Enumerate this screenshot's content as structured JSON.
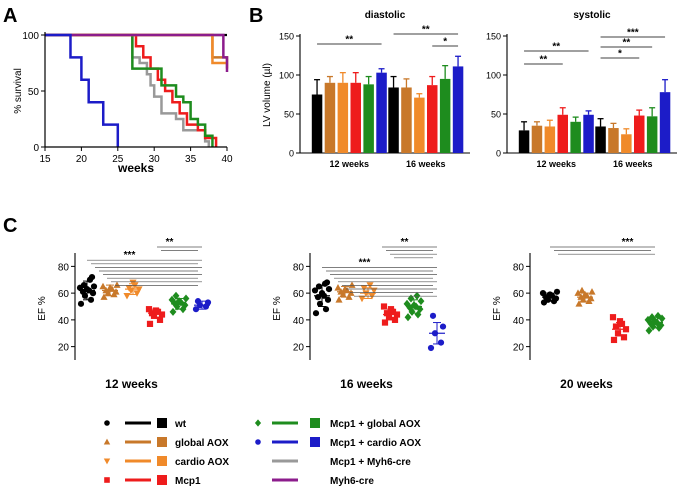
{
  "panel_letters": [
    "A",
    "B",
    "C"
  ],
  "colors": {
    "wt": "#000000",
    "global_aox": "#c8782a",
    "cardio_aox": "#f08a2a",
    "mcp1": "#ee1c1c",
    "mcp1_global_aox": "#1e8c1e",
    "mcp1_cardio_aox": "#1c1cc8",
    "mcp1_myh6cre": "#999999",
    "myh6cre": "#8c1c8c"
  },
  "chart_data": [
    {
      "id": "A",
      "type": "line",
      "subtype": "kaplan-meier step",
      "xlabel": "weeks",
      "ylabel": "% survival",
      "xlim": [
        15,
        40
      ],
      "ylim": [
        0,
        100
      ],
      "xticks": [
        15,
        20,
        25,
        30,
        35,
        40
      ],
      "yticks": [
        0,
        50,
        100
      ],
      "series": [
        {
          "name": "wt",
          "color": "#000000",
          "x": [
            15,
            40
          ],
          "y": [
            100,
            100
          ]
        },
        {
          "name": "Mcp1 + Myh6-cre",
          "color": "#999999",
          "x": [
            15,
            26,
            27,
            28,
            29,
            29.5,
            30,
            31,
            33,
            34,
            37,
            37.5
          ],
          "y": [
            100,
            100,
            80,
            75,
            65,
            55,
            45,
            30,
            25,
            15,
            5,
            0
          ]
        },
        {
          "name": "Mcp1",
          "color": "#ee1c1c",
          "x": [
            15,
            26.5,
            27.5,
            28.5,
            29.5,
            30.5,
            31.5,
            32.5,
            33.5,
            34.5,
            36,
            37,
            38.5
          ],
          "y": [
            100,
            100,
            90,
            80,
            70,
            60,
            50,
            40,
            30,
            20,
            15,
            8,
            0
          ]
        },
        {
          "name": "Mcp1 + global AOX",
          "color": "#1e8c1e",
          "x": [
            15,
            26,
            27,
            30,
            31,
            33,
            34,
            35,
            36,
            37,
            38
          ],
          "y": [
            100,
            100,
            70,
            70,
            55,
            45,
            40,
            25,
            20,
            10,
            0
          ]
        },
        {
          "name": "global AOX",
          "color": "#c8782a",
          "x": [
            15,
            37.5,
            38,
            40
          ],
          "y": [
            100,
            100,
            80,
            70
          ]
        },
        {
          "name": "cardio AOX",
          "color": "#f08a2a",
          "x": [
            15,
            37.5,
            38,
            40
          ],
          "y": [
            100,
            100,
            75,
            75
          ]
        },
        {
          "name": "Myh6-cre",
          "color": "#8c1c8c",
          "x": [
            15,
            39,
            39.5,
            40
          ],
          "y": [
            100,
            100,
            80,
            67
          ]
        },
        {
          "name": "Mcp1 + cardio AOX",
          "color": "#1c1cc8",
          "x": [
            15,
            17.5,
            18.5,
            20,
            21,
            22,
            23,
            24,
            25,
            25
          ],
          "y": [
            100,
            100,
            80,
            60,
            40,
            40,
            20,
            20,
            20,
            0
          ]
        }
      ]
    },
    {
      "id": "B",
      "type": "bar",
      "ylabel": "LV volume (µl)",
      "ylim": [
        0,
        150
      ],
      "yticks": [
        0,
        50,
        100,
        150
      ],
      "groups": [
        "12 weeks",
        "16 weeks"
      ],
      "series_order": [
        "wt",
        "global AOX",
        "cardio AOX",
        "Mcp1",
        "Mcp1 + global AOX",
        "Mcp1 + cardio AOX"
      ],
      "panels": [
        {
          "title": "diastolic",
          "values": [
            [
              75,
              90,
              90,
              90,
              88,
              103
            ],
            [
              84,
              84,
              71,
              87,
              95,
              111
            ]
          ],
          "errors": [
            [
              19,
              8,
              13,
              13,
              10,
              5
            ],
            [
              14,
              11,
              5,
              11,
              17,
              13
            ]
          ],
          "significance": [
            {
              "label": "**",
              "group": 0,
              "from": 0,
              "to": 5
            },
            {
              "label": "**",
              "group": 1,
              "from": 0,
              "to": 5
            },
            {
              "label": "*",
              "group": 1,
              "from": 3,
              "to": 5
            }
          ]
        },
        {
          "title": "systolic",
          "values": [
            [
              29,
              35,
              34,
              49,
              40,
              49
            ],
            [
              34,
              32,
              24,
              48,
              47,
              78
            ]
          ],
          "errors": [
            [
              11,
              5,
              8,
              9,
              6,
              5
            ],
            [
              10,
              6,
              7,
              7,
              11,
              16
            ]
          ],
          "significance": [
            {
              "label": "**",
              "group": 0,
              "from": 0,
              "to": 5
            },
            {
              "label": "**",
              "group": 0,
              "from": 0,
              "to": 3
            },
            {
              "label": "***",
              "group": 1,
              "from": 0,
              "to": 5
            },
            {
              "label": "**",
              "group": 1,
              "from": 0,
              "to": 4
            },
            {
              "label": "*",
              "group": 1,
              "from": 0,
              "to": 3
            }
          ]
        }
      ]
    },
    {
      "id": "C",
      "type": "scatter",
      "ylabel": "EF %",
      "ylim": [
        10,
        90
      ],
      "yticks": [
        20,
        40,
        60,
        80
      ],
      "panels": [
        {
          "title": "12 weeks",
          "groups": [
            {
              "name": "wt",
              "marker": "circle",
              "color": "#000000",
              "mean": 62,
              "sd": 7,
              "values": [
                52,
                55,
                58,
                60,
                61,
                62,
                63,
                64,
                65,
                66,
                70,
                72
              ]
            },
            {
              "name": "global AOX",
              "marker": "triangle-up",
              "color": "#c8782a",
              "mean": 62,
              "sd": 4,
              "values": [
                57,
                59,
                60,
                61,
                62,
                63,
                64,
                65,
                66
              ]
            },
            {
              "name": "cardio AOX",
              "marker": "triangle-down",
              "color": "#f08a2a",
              "mean": 63,
              "sd": 4,
              "values": [
                58,
                60,
                62,
                63,
                64,
                66,
                68
              ]
            },
            {
              "name": "Mcp1",
              "marker": "square",
              "color": "#ee1c1c",
              "mean": 45,
              "sd": 3,
              "values": [
                37,
                40,
                43,
                44,
                45,
                46,
                47,
                48
              ]
            },
            {
              "name": "Mcp1 + global AOX",
              "marker": "diamond",
              "color": "#1e8c1e",
              "mean": 52,
              "sd": 4,
              "values": [
                46,
                48,
                50,
                51,
                52,
                53,
                54,
                55,
                56,
                58
              ]
            },
            {
              "name": "Mcp1 + cardio AOX",
              "marker": "circle",
              "color": "#1c1cc8",
              "mean": 51,
              "sd": 3,
              "values": [
                48,
                50,
                51,
                53,
                54
              ]
            }
          ],
          "significance": [
            {
              "label": "**",
              "levels": 2
            },
            {
              "label": "***",
              "levels": 8
            }
          ]
        },
        {
          "title": "16 weeks",
          "groups": [
            {
              "name": "wt",
              "marker": "circle",
              "color": "#000000",
              "mean": 58,
              "sd": 8,
              "values": [
                45,
                48,
                52,
                55,
                57,
                58,
                60,
                62,
                63,
                65,
                67,
                68
              ]
            },
            {
              "name": "global AOX",
              "marker": "triangle-up",
              "color": "#c8782a",
              "mean": 61,
              "sd": 4,
              "values": [
                55,
                57,
                59,
                60,
                61,
                62,
                63,
                64,
                66
              ]
            },
            {
              "name": "cardio AOX",
              "marker": "triangle-down",
              "color": "#f08a2a",
              "mean": 60,
              "sd": 4,
              "values": [
                56,
                58,
                60,
                62,
                64,
                66
              ]
            },
            {
              "name": "Mcp1",
              "marker": "square",
              "color": "#ee1c1c",
              "mean": 44,
              "sd": 4,
              "values": [
                38,
                40,
                42,
                44,
                45,
                46,
                48,
                50
              ]
            },
            {
              "name": "Mcp1 + global AOX",
              "marker": "diamond",
              "color": "#1e8c1e",
              "mean": 50,
              "sd": 5,
              "values": [
                42,
                44,
                46,
                48,
                49,
                50,
                51,
                52,
                54,
                56,
                58
              ]
            },
            {
              "name": "Mcp1 + cardio AOX",
              "marker": "circle",
              "color": "#1c1cc8",
              "mean": 30,
              "sd": 8,
              "values": [
                19,
                23,
                30,
                35,
                43
              ]
            }
          ],
          "significance": [
            {
              "label": "**",
              "levels": 4
            },
            {
              "label": "***",
              "levels": 9
            }
          ]
        },
        {
          "title": "20 weeks",
          "groups": [
            {
              "name": "wt",
              "marker": "circle",
              "color": "#000000",
              "mean": 57,
              "sd": 3,
              "values": [
                53,
                54,
                55,
                56,
                57,
                58,
                59,
                60,
                61
              ]
            },
            {
              "name": "global AOX",
              "marker": "triangle-up",
              "color": "#c8782a",
              "mean": 57,
              "sd": 3,
              "values": [
                52,
                54,
                55,
                56,
                57,
                58,
                59,
                60,
                61,
                62
              ]
            },
            {
              "name": "Mcp1",
              "marker": "square",
              "color": "#ee1c1c",
              "mean": 33,
              "sd": 5,
              "values": [
                25,
                27,
                30,
                33,
                35,
                37,
                39,
                42
              ]
            },
            {
              "name": "Mcp1 + global AOX",
              "marker": "diamond",
              "color": "#1e8c1e",
              "mean": 38,
              "sd": 4,
              "values": [
                32,
                34,
                35,
                36,
                37,
                38,
                39,
                40,
                41,
                42,
                43
              ]
            }
          ],
          "significance": [
            {
              "label": "***",
              "levels": 3
            }
          ]
        }
      ]
    }
  ],
  "legend": {
    "columns": [
      [
        {
          "label": "wt",
          "color": "#000000",
          "marker": "circle"
        },
        {
          "label": "global AOX",
          "color": "#c8782a",
          "marker": "triangle-up"
        },
        {
          "label": "cardio AOX",
          "color": "#f08a2a",
          "marker": "triangle-down"
        },
        {
          "label": "Mcp1",
          "color": "#ee1c1c",
          "marker": "square"
        }
      ],
      [
        {
          "label": "Mcp1 + global AOX",
          "color": "#1e8c1e",
          "marker": "diamond"
        },
        {
          "label": "Mcp1 + cardio AOX",
          "color": "#1c1cc8",
          "marker": "circle"
        },
        {
          "label": "Mcp1 + Myh6-cre",
          "color": "#999999",
          "marker": "none"
        },
        {
          "label": "Myh6-cre",
          "color": "#8c1c8c",
          "marker": "none"
        }
      ]
    ]
  }
}
